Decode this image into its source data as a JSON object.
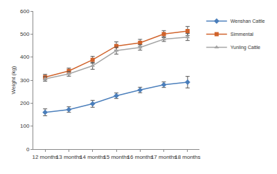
{
  "chart_data": {
    "type": "line",
    "y_label": "Weight (kg)",
    "categories": [
      "12 months",
      "13 months",
      "14 months",
      "15 months",
      "16 months",
      "17 months",
      "18 months"
    ],
    "series": [
      {
        "name": "Wenshan Cattle",
        "color": "#4a7ebb",
        "marker": "diamond",
        "values": [
          160,
          172,
          197,
          232,
          257,
          280,
          291
        ],
        "error": [
          15,
          12,
          15,
          12,
          12,
          12,
          25
        ]
      },
      {
        "name": "Simmental",
        "color": "#d0622a",
        "marker": "square",
        "values": [
          313,
          340,
          388,
          448,
          462,
          500,
          513
        ],
        "error": [
          12,
          12,
          15,
          18,
          15,
          15,
          20
        ]
      },
      {
        "name": "Yunling Cattle",
        "color": "#a5a5a5",
        "marker": "triangle",
        "values": [
          305,
          327,
          362,
          428,
          442,
          478,
          487
        ],
        "error": [
          10,
          10,
          15,
          15,
          12,
          10,
          15
        ]
      }
    ],
    "ylim": [
      0,
      600
    ],
    "yticks": [
      0,
      100,
      200,
      300,
      400,
      500,
      600
    ],
    "grid": false,
    "legend": "upper right"
  }
}
